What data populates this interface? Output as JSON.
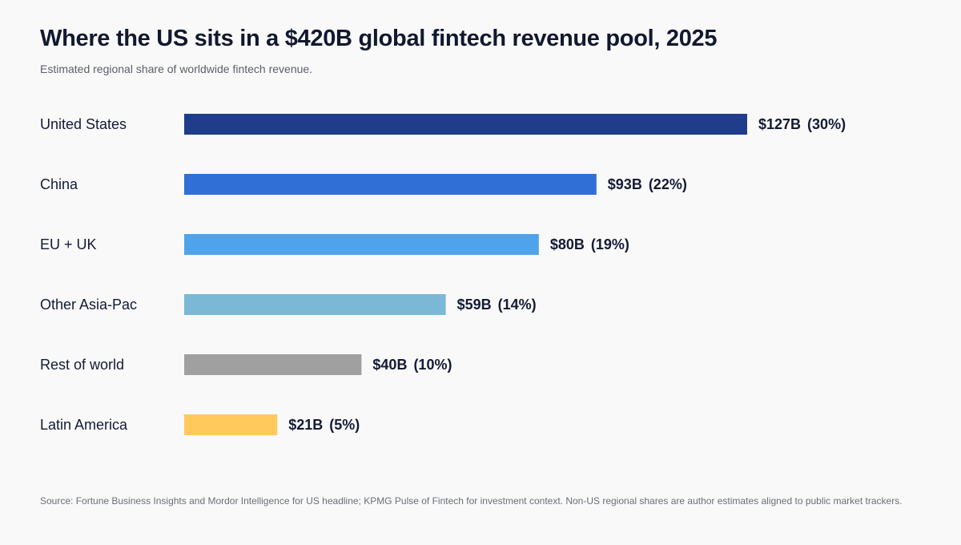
{
  "chart_data": {
    "type": "bar",
    "orientation": "horizontal",
    "title": "Where the US sits in a $420B global fintech revenue pool, 2025",
    "subtitle": "Estimated regional share of worldwide fintech revenue.",
    "categories": [
      "United States",
      "China",
      "EU + UK",
      "Other Asia-Pac",
      "Rest of world",
      "Latin America"
    ],
    "values": [
      127,
      93,
      80,
      59,
      40,
      21
    ],
    "value_labels": [
      "$127B",
      "$93B",
      "$80B",
      "$59B",
      "$40B",
      "$21B"
    ],
    "share_labels": [
      "(30%)",
      "(22%)",
      "(19%)",
      "(14%)",
      "(10%)",
      "(5%)"
    ],
    "colors": [
      "#1f3d8a",
      "#2f6fd6",
      "#4ea3ea",
      "#7ab8d6",
      "#a0a0a0",
      "#ffc95c"
    ],
    "xlim": [
      0,
      127
    ],
    "grid": false,
    "legend": "none",
    "source": "Source: Fortune Business Insights and Mordor Intelligence for US headline; KPMG Pulse of Fintech for investment context. Non-US regional shares are author estimates aligned to public market trackers."
  }
}
